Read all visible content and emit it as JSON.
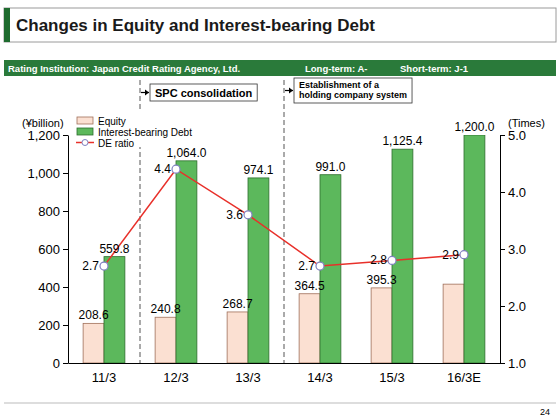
{
  "chart_data": {
    "type": "bar",
    "title": "Changes in Equity and Interest-bearing Debt",
    "subtitle": [
      "Rating Institution: Japan Credit Rating Agency, Ltd.",
      "Long-term: A-",
      "Short-term: J-1"
    ],
    "page_number": "24",
    "categories": [
      "11/3",
      "12/3",
      "13/3",
      "14/3",
      "15/3",
      "16/3E"
    ],
    "ylabel": "(¥billion)",
    "y2label": "(Times)",
    "ylim": [
      0,
      1200
    ],
    "yticks": [
      0,
      200,
      400,
      600,
      800,
      {
        "value": 1000,
        "label": "1,000"
      },
      {
        "value": 1200,
        "label": "1,200"
      }
    ],
    "y2lim": [
      1,
      5
    ],
    "y2ticks": [
      {
        "value": 1,
        "label": "1.0"
      },
      {
        "value": 2,
        "label": "2.0"
      },
      {
        "value": 3,
        "label": "3.0"
      },
      {
        "value": 4,
        "label": "4.0"
      },
      {
        "value": 5,
        "label": "5.0"
      }
    ],
    "legend": "upper left",
    "data_labels": true,
    "series": [
      {
        "name": "Equity",
        "type": "bar",
        "color": "#fbe0d2",
        "values": [
          208.6,
          240.8,
          268.7,
          364.5,
          395.3,
          415
        ],
        "value_labels": [
          "208.6",
          "240.8",
          "268.7",
          "364.5",
          "395.3",
          null
        ]
      },
      {
        "name": "Interest-bearing Debt",
        "type": "bar",
        "color": "#5cb85c",
        "values": [
          559.8,
          1064.0,
          974.1,
          991.0,
          1125.4,
          1200.0
        ],
        "value_labels": [
          "559.8",
          "1,064.0",
          "974.1",
          "991.0",
          "1,125.4",
          "1,200.0"
        ]
      },
      {
        "name": "DE ratio",
        "type": "line",
        "axis": "y2",
        "color": "#e8302a",
        "marker": "circle",
        "values": [
          2.7,
          4.4,
          3.6,
          2.7,
          2.8,
          2.9
        ]
      }
    ],
    "annotations": [
      {
        "lines": [
          "SPC consolidation"
        ],
        "start": "12/3"
      },
      {
        "lines": [
          "Establishment of a",
          "holding company system"
        ],
        "start": "14/3"
      }
    ]
  }
}
